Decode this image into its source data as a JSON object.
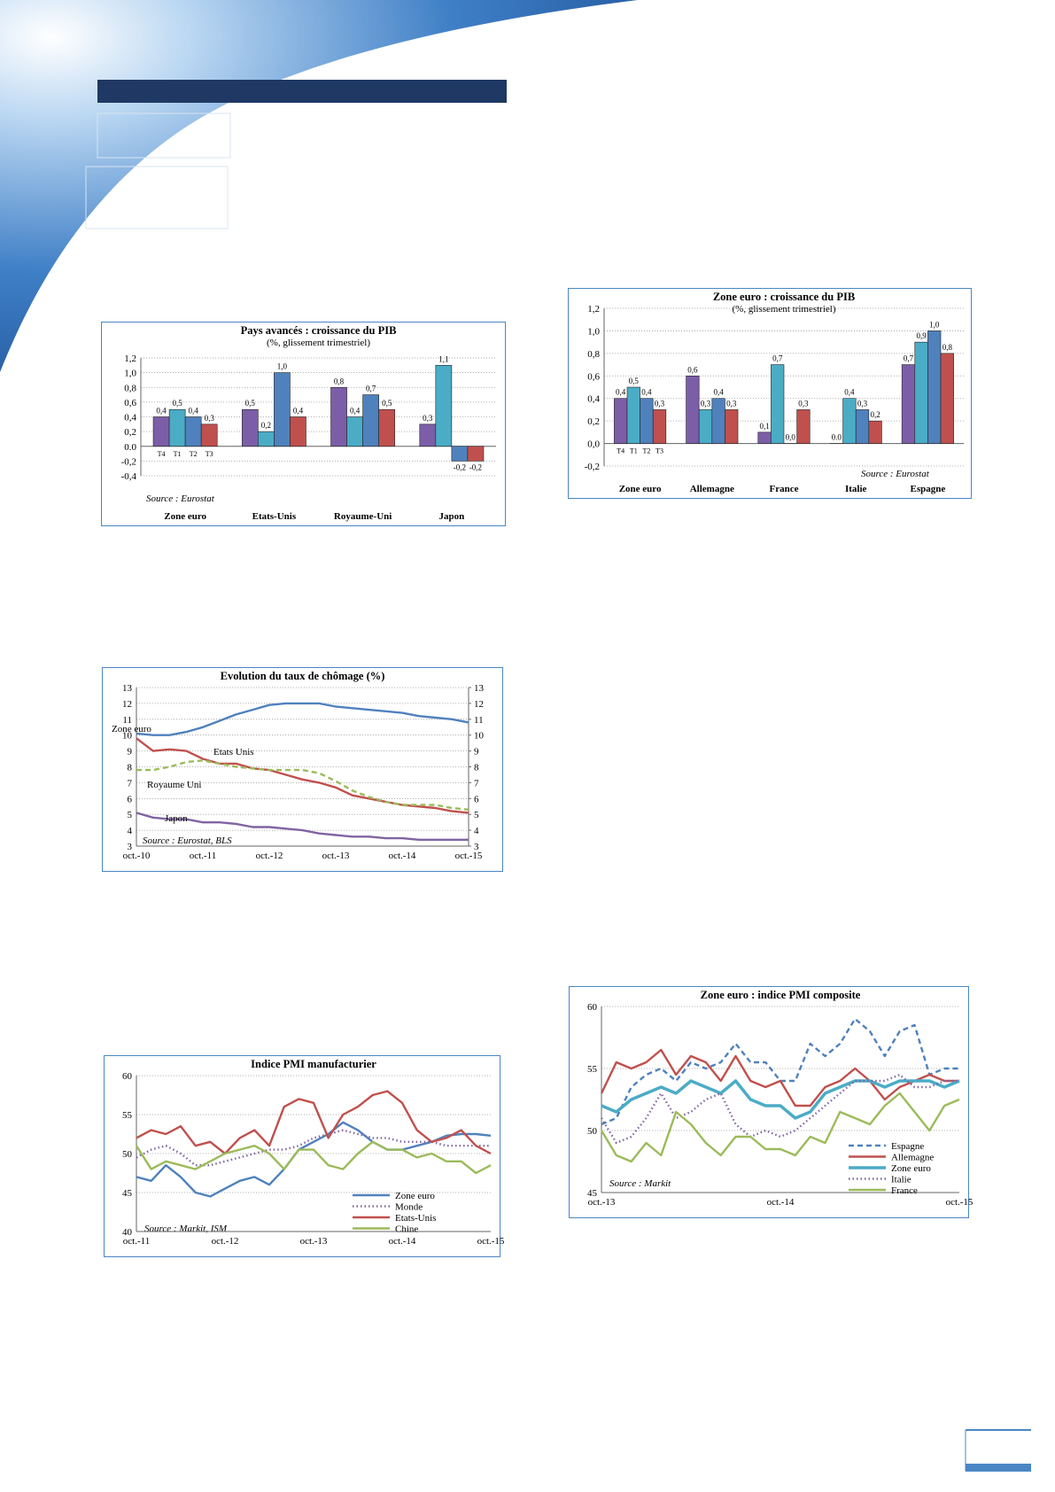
{
  "chart_data": [
    {
      "type": "bar",
      "title": "Pays avancés : croissance du PIB",
      "subtitle": "(%, glissement trimestriel)",
      "annotation": "Source : Eurostat",
      "categories": [
        "Zone euro",
        "Etats-Unis",
        "Royaume-Uni",
        "Japon"
      ],
      "series": [
        {
          "name": "T4",
          "color": "#7b5ea7",
          "values": [
            0.4,
            0.5,
            0.8,
            0.3
          ],
          "value_labels": [
            "0,4",
            "0,5",
            "0,8",
            "0,3"
          ]
        },
        {
          "name": "T1",
          "color": "#4bacc6",
          "values": [
            0.5,
            0.2,
            0.4,
            1.1
          ],
          "value_labels": [
            "0,5",
            "0,2",
            "0,4",
            "1,1"
          ]
        },
        {
          "name": "T2",
          "color": "#4f81bd",
          "values": [
            0.4,
            1.0,
            0.7,
            -0.2
          ],
          "value_labels": [
            "0,4",
            "1,0",
            "0,7",
            "-0,2"
          ]
        },
        {
          "name": "T3",
          "color": "#c0504d",
          "values": [
            0.3,
            0.4,
            0.5,
            -0.2
          ],
          "value_labels": [
            "0,3",
            "0,4",
            "0,5",
            "-0,2"
          ]
        }
      ],
      "ylim": [
        -0.4,
        1.2
      ],
      "yticks": [
        {
          "value": -0.4,
          "label": "-0,4"
        },
        {
          "value": -0.2,
          "label": "-0,2"
        },
        {
          "value": 0,
          "label": "0.0"
        },
        {
          "value": 0.2,
          "label": "0,2"
        },
        {
          "value": 0.4,
          "label": "0,4"
        },
        {
          "value": 0.6,
          "label": "0,6"
        },
        {
          "value": 0.8,
          "label": "0,8"
        },
        {
          "value": 1.0,
          "label": "1,0"
        },
        {
          "value": 1.2,
          "label": "1,2"
        }
      ],
      "grid": true
    },
    {
      "type": "bar",
      "title": "Zone euro : croissance du PIB",
      "subtitle": "(%, glissement trimestriel)",
      "annotation": "Source : Eurostat",
      "categories": [
        "Zone euro",
        "Allemagne",
        "France",
        "Italie",
        "Espagne"
      ],
      "series": [
        {
          "name": "T4",
          "color": "#7b5ea7",
          "values": [
            0.4,
            0.6,
            0.1,
            0.0,
            0.7
          ],
          "value_labels": [
            "0,4",
            "0,6",
            "0,1",
            "0.0",
            "0,7"
          ]
        },
        {
          "name": "T1",
          "color": "#4bacc6",
          "values": [
            0.5,
            0.3,
            0.7,
            0.4,
            0.9
          ],
          "value_labels": [
            "0,5",
            "0,3",
            "0,7",
            "0,4",
            "0,9"
          ]
        },
        {
          "name": "T2",
          "color": "#4f81bd",
          "values": [
            0.4,
            0.4,
            0.0,
            0.3,
            1.0
          ],
          "value_labels": [
            "0,4",
            "0,4",
            "0,0",
            "0,3",
            "1,0"
          ]
        },
        {
          "name": "T3",
          "color": "#c0504d",
          "values": [
            0.3,
            0.3,
            0.3,
            0.2,
            0.8
          ],
          "value_labels": [
            "0,3",
            "0,3",
            "0,3",
            "0,2",
            "0,8"
          ]
        }
      ],
      "ylim": [
        -0.2,
        1.2
      ],
      "yticks": [
        {
          "value": -0.2,
          "label": "-0,2"
        },
        {
          "value": 0,
          "label": "0,0"
        },
        {
          "value": 0.2,
          "label": "0,2"
        },
        {
          "value": 0.4,
          "label": "0,4"
        },
        {
          "value": 0.6,
          "label": "0,6"
        },
        {
          "value": 0.8,
          "label": "0,8"
        },
        {
          "value": 1.0,
          "label": "1,0"
        },
        {
          "value": 1.2,
          "label": "1,2"
        }
      ],
      "grid": true
    },
    {
      "type": "line",
      "title": "Evolution du taux de chômage (%)",
      "annotation": "Source : Eurostat, BLS",
      "legend": "inline",
      "categories": [
        "oct.-10",
        null,
        null,
        null,
        "oct.-11",
        null,
        null,
        null,
        "oct.-12",
        null,
        null,
        null,
        "oct.-13",
        null,
        null,
        null,
        "oct.-14",
        null,
        null,
        null,
        "oct.-15"
      ],
      "series": [
        {
          "name": "Zone euro",
          "color": "#4f81bd",
          "style": "solid",
          "values": [
            10.1,
            10.0,
            10.0,
            10.2,
            10.5,
            10.9,
            11.3,
            11.6,
            11.9,
            12.0,
            12.0,
            12.0,
            11.8,
            11.7,
            11.6,
            11.5,
            11.4,
            11.2,
            11.1,
            11.0,
            10.8
          ]
        },
        {
          "name": "Etats Unis",
          "color": "#c0504d",
          "style": "solid",
          "values": [
            9.8,
            9.0,
            9.1,
            9.0,
            8.5,
            8.2,
            8.2,
            7.9,
            7.8,
            7.5,
            7.2,
            7.0,
            6.7,
            6.2,
            6.0,
            5.8,
            5.6,
            5.5,
            5.4,
            5.2,
            5.1
          ]
        },
        {
          "name": "Royaume Uni",
          "color": "#9bbb59",
          "style": "dashed",
          "values": [
            7.8,
            7.8,
            8.0,
            8.3,
            8.4,
            8.2,
            8.0,
            7.9,
            7.8,
            7.8,
            7.8,
            7.6,
            7.1,
            6.5,
            6.1,
            5.8,
            5.6,
            5.6,
            5.6,
            5.4,
            5.3
          ]
        },
        {
          "name": "Japon",
          "color": "#8064a2",
          "style": "solid",
          "values": [
            5.1,
            4.8,
            4.7,
            4.7,
            4.5,
            4.5,
            4.4,
            4.2,
            4.2,
            4.1,
            4.0,
            3.8,
            3.7,
            3.6,
            3.6,
            3.5,
            3.5,
            3.4,
            3.4,
            3.4,
            3.4
          ]
        }
      ],
      "ylim": [
        3,
        13
      ],
      "yticks": [
        3,
        4,
        5,
        6,
        7,
        8,
        9,
        10,
        11,
        12,
        13
      ],
      "y2lim": [
        3,
        13
      ],
      "y2ticks": [
        3,
        4,
        5,
        6,
        7,
        8,
        9,
        10,
        11,
        12,
        13
      ],
      "grid": true
    },
    {
      "type": "line",
      "title": "Indice PMI manufacturier",
      "annotation": "Source : Markit, ISM",
      "legend": "lower right",
      "categories": [
        "oct.-11",
        null,
        null,
        null,
        null,
        null,
        "oct.-12",
        null,
        null,
        null,
        null,
        null,
        "oct.-13",
        null,
        null,
        null,
        null,
        null,
        "oct.-14",
        null,
        null,
        null,
        null,
        null,
        "oct.-15"
      ],
      "series": [
        {
          "name": "Zone euro",
          "color": "#4f81bd",
          "style": "solid",
          "values": [
            47,
            46.5,
            48.5,
            47,
            45,
            44.5,
            45.5,
            46.5,
            47,
            46,
            48,
            50.5,
            51.5,
            52.5,
            54,
            53,
            51.5,
            50.5,
            50.5,
            51,
            51.5,
            52.3,
            52.5,
            52.5,
            52.3
          ]
        },
        {
          "name": "Monde",
          "color": "#8064a2",
          "style": "dotted",
          "values": [
            49.5,
            50.5,
            51,
            50,
            48.5,
            48.5,
            49,
            49.5,
            50,
            50.5,
            50.5,
            51,
            52,
            52.5,
            53,
            52.5,
            52,
            52,
            51.5,
            51.5,
            51.5,
            51,
            51,
            51,
            51
          ]
        },
        {
          "name": "Etats-Unis",
          "color": "#c0504d",
          "style": "solid",
          "values": [
            52,
            53,
            52.5,
            53.5,
            51,
            51.5,
            50,
            52,
            53,
            51,
            56,
            57,
            56.5,
            52,
            55,
            56,
            57.5,
            58,
            56.5,
            53,
            51.5,
            52,
            53,
            51,
            50
          ]
        },
        {
          "name": "Chine",
          "color": "#9bbb59",
          "style": "solid",
          "values": [
            51,
            48,
            49,
            48.5,
            48,
            49,
            50,
            50.5,
            51,
            50,
            48,
            50.5,
            50.5,
            48.5,
            48,
            50,
            51.5,
            50.5,
            50.5,
            49.5,
            50,
            49,
            49,
            47.5,
            48.5
          ]
        }
      ],
      "ylim": [
        40,
        60
      ],
      "yticks": [
        40,
        45,
        50,
        55,
        60
      ],
      "grid": true
    },
    {
      "type": "line",
      "title": "Zone euro : indice PMI composite",
      "annotation": "Source : Markit",
      "legend": "lower right",
      "categories": [
        "oct.-13",
        null,
        null,
        null,
        null,
        null,
        null,
        null,
        null,
        null,
        null,
        null,
        "oct.-14",
        null,
        null,
        null,
        null,
        null,
        null,
        null,
        null,
        null,
        null,
        null,
        "oct.-15"
      ],
      "series": [
        {
          "name": "Espagne",
          "color": "#4f81bd",
          "style": "dashed",
          "values": [
            50.5,
            51,
            53.5,
            54.5,
            55,
            54,
            55.5,
            55,
            55.5,
            57,
            55.5,
            55.5,
            54,
            54,
            57,
            56,
            57,
            59,
            58,
            56,
            58,
            58.5,
            54.5,
            55,
            55
          ]
        },
        {
          "name": "Allemagne",
          "color": "#c0504d",
          "style": "solid",
          "values": [
            53,
            55.5,
            55,
            55.5,
            56.5,
            54.5,
            56,
            55.5,
            54,
            56,
            54,
            53.5,
            54,
            52,
            52,
            53.5,
            54,
            55,
            54,
            52.5,
            53.5,
            54,
            54.5,
            54,
            54
          ]
        },
        {
          "name": "Zone euro",
          "color": "#4bacc6",
          "style": "thick",
          "values": [
            52,
            51.5,
            52.5,
            53,
            53.5,
            53,
            54,
            53.5,
            53,
            54,
            52.5,
            52,
            52,
            51,
            51.5,
            53,
            53.5,
            54,
            54,
            53.5,
            54,
            54,
            54,
            53.5,
            54
          ]
        },
        {
          "name": "Italie",
          "color": "#8064a2",
          "style": "dotted",
          "values": [
            51,
            49,
            49.5,
            51,
            53,
            51,
            51.5,
            52.5,
            53,
            50.5,
            49.5,
            50,
            49.5,
            50,
            51,
            52,
            53,
            54,
            54,
            54,
            54.5,
            53.5,
            53.5,
            54,
            54
          ]
        },
        {
          "name": "France",
          "color": "#9bbb59",
          "style": "solid",
          "values": [
            50,
            48,
            47.5,
            49,
            48,
            51.5,
            50.5,
            49,
            48,
            49.5,
            49.5,
            48.5,
            48.5,
            48,
            49.5,
            49,
            51.5,
            51,
            50.5,
            52,
            53,
            51.5,
            50,
            52,
            52.5
          ]
        }
      ],
      "ylim": [
        45,
        60
      ],
      "yticks": [
        45,
        50,
        55,
        60
      ],
      "grid": true
    }
  ]
}
